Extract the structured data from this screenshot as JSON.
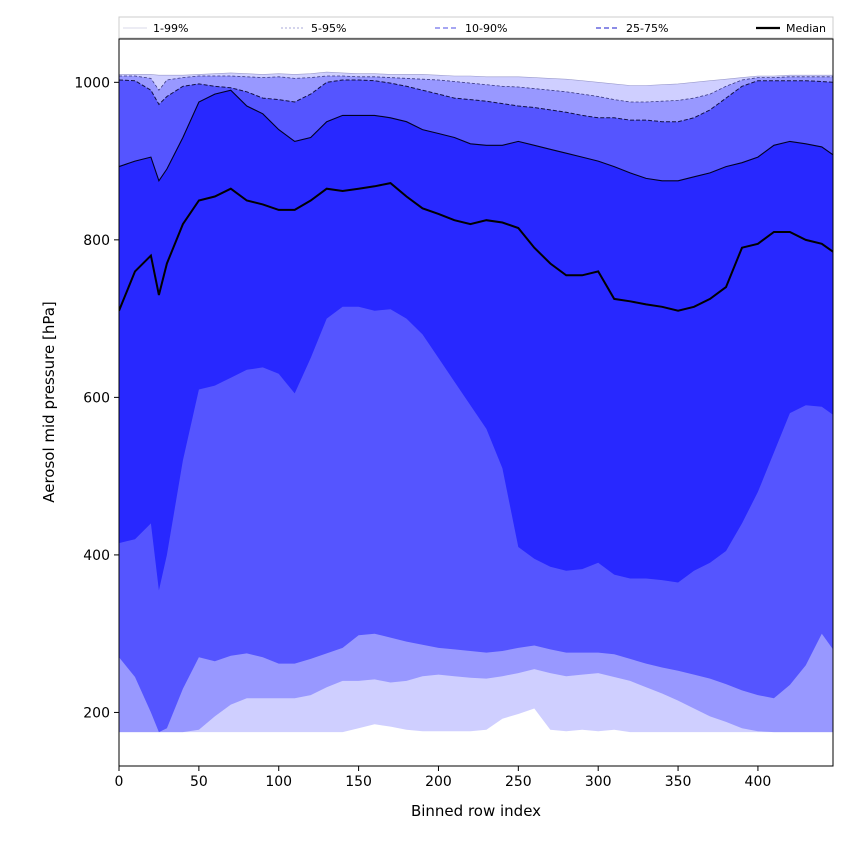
{
  "chart_data": {
    "type": "area",
    "xlabel": "Binned row index",
    "ylabel": "Aerosol mid pressure [hPa]",
    "xlim": [
      0,
      447
    ],
    "ylim": [
      132,
      1055
    ],
    "xticks": [
      0,
      50,
      100,
      150,
      200,
      250,
      300,
      350,
      400
    ],
    "yticks": [
      200,
      400,
      600,
      800,
      1000
    ],
    "legend_placement": "top",
    "legend": [
      "1-99%",
      "5-95%",
      "10-90%",
      "25-75%",
      "Median"
    ],
    "x": [
      0,
      10,
      20,
      25,
      30,
      40,
      50,
      60,
      70,
      80,
      90,
      100,
      110,
      120,
      130,
      140,
      150,
      160,
      170,
      180,
      190,
      200,
      210,
      220,
      230,
      240,
      250,
      260,
      270,
      280,
      290,
      300,
      310,
      320,
      330,
      340,
      350,
      360,
      370,
      380,
      390,
      400,
      410,
      420,
      430,
      440,
      447
    ],
    "bands": [
      {
        "name": "1-99%",
        "color": "#cfcfff",
        "low": [
          175,
          175,
          175,
          175,
          175,
          175,
          175,
          175,
          175,
          175,
          175,
          175,
          175,
          175,
          175,
          175,
          180,
          185,
          182,
          178,
          176,
          176,
          176,
          176,
          178,
          192,
          198,
          205,
          178,
          176,
          178,
          176,
          178,
          175,
          175,
          175,
          175,
          175,
          175,
          175,
          175,
          175,
          175,
          175,
          175,
          175,
          175
        ],
        "high": [
          1010,
          1010,
          1010,
          1009,
          1009,
          1009,
          1010,
          1011,
          1012,
          1011,
          1010,
          1011,
          1010,
          1011,
          1013,
          1012,
          1011,
          1011,
          1010,
          1010,
          1010,
          1009,
          1008,
          1008,
          1007,
          1007,
          1007,
          1006,
          1005,
          1004,
          1002,
          1000,
          998,
          996,
          996,
          997,
          998,
          1000,
          1002,
          1004,
          1006,
          1008,
          1008,
          1009,
          1009,
          1009,
          1009
        ]
      },
      {
        "name": "5-95%",
        "color": "#9898ff",
        "low": [
          175,
          175,
          175,
          175,
          175,
          175,
          178,
          195,
          210,
          218,
          218,
          218,
          218,
          222,
          232,
          240,
          240,
          242,
          238,
          240,
          246,
          248,
          246,
          244,
          243,
          246,
          250,
          255,
          250,
          246,
          248,
          250,
          245,
          240,
          232,
          224,
          215,
          205,
          195,
          188,
          180,
          176,
          175,
          175,
          175,
          175,
          175
        ],
        "high": [
          1008,
          1008,
          1005,
          990,
          1003,
          1006,
          1008,
          1008,
          1008,
          1007,
          1006,
          1007,
          1005,
          1006,
          1008,
          1008,
          1007,
          1007,
          1006,
          1005,
          1004,
          1003,
          1001,
          999,
          997,
          995,
          994,
          992,
          990,
          988,
          985,
          982,
          978,
          975,
          975,
          976,
          977,
          980,
          985,
          995,
          1003,
          1006,
          1006,
          1007,
          1007,
          1007,
          1007
        ]
      },
      {
        "name": "10-90%",
        "color": "#5555ff",
        "low": [
          270,
          245,
          200,
          175,
          180,
          230,
          270,
          265,
          272,
          275,
          270,
          262,
          262,
          268,
          275,
          282,
          298,
          300,
          295,
          290,
          286,
          282,
          280,
          278,
          276,
          278,
          282,
          285,
          280,
          276,
          276,
          276,
          274,
          268,
          262,
          257,
          253,
          248,
          243,
          236,
          228,
          222,
          218,
          235,
          260,
          300,
          280
        ],
        "high": [
          1003,
          1002,
          990,
          972,
          982,
          995,
          998,
          995,
          993,
          988,
          980,
          978,
          975,
          985,
          1000,
          1003,
          1003,
          1002,
          999,
          995,
          990,
          985,
          980,
          978,
          976,
          973,
          970,
          968,
          965,
          962,
          958,
          955,
          955,
          952,
          952,
          950,
          950,
          955,
          965,
          980,
          995,
          1002,
          1002,
          1002,
          1002,
          1001,
          1000
        ]
      },
      {
        "name": "25-75%",
        "color": "#2828ff",
        "low": [
          415,
          420,
          440,
          355,
          400,
          520,
          610,
          615,
          625,
          635,
          638,
          630,
          605,
          650,
          700,
          715,
          715,
          710,
          712,
          700,
          680,
          650,
          620,
          590,
          560,
          510,
          410,
          395,
          385,
          380,
          382,
          390,
          375,
          370,
          370,
          368,
          365,
          380,
          390,
          405,
          440,
          480,
          530,
          580,
          590,
          588,
          578
        ],
        "high": [
          893,
          900,
          905,
          875,
          890,
          930,
          975,
          985,
          990,
          970,
          960,
          940,
          925,
          930,
          950,
          958,
          958,
          958,
          955,
          950,
          940,
          935,
          930,
          922,
          920,
          920,
          925,
          920,
          915,
          910,
          905,
          900,
          893,
          885,
          878,
          875,
          875,
          880,
          885,
          893,
          898,
          905,
          920,
          925,
          922,
          918,
          908
        ]
      }
    ],
    "median": {
      "name": "Median",
      "color": "#000000",
      "values": [
        710,
        760,
        780,
        730,
        770,
        820,
        850,
        855,
        865,
        850,
        845,
        838,
        838,
        850,
        865,
        862,
        865,
        868,
        872,
        855,
        840,
        833,
        825,
        820,
        825,
        822,
        815,
        790,
        770,
        755,
        755,
        760,
        725,
        722,
        718,
        715,
        710,
        715,
        725,
        740,
        790,
        795,
        810,
        810,
        800,
        795,
        785
      ]
    }
  }
}
